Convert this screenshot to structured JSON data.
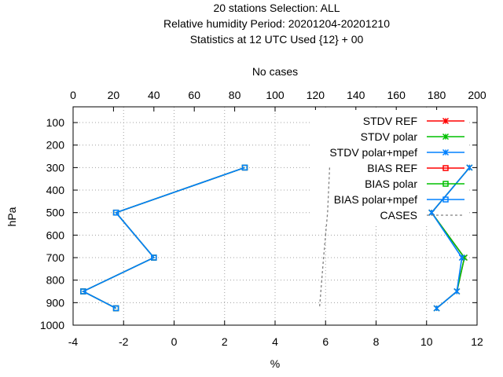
{
  "chart_data": {
    "type": "line",
    "title_lines": [
      "20 stations Selection: ALL",
      "Relative humidity  Period: 20201204-20201210",
      "Statistics at 12 UTC  Used {12} + 00"
    ],
    "xlabel": "%",
    "ylabel": "hPa",
    "x2label": "No cases",
    "xlim": [
      -4,
      12
    ],
    "x2lim": [
      0,
      200
    ],
    "ylim": [
      1000,
      30
    ],
    "xticks": [
      "-4",
      "-2",
      "0",
      "2",
      "4",
      "6",
      "8",
      "10",
      "12"
    ],
    "x2ticks": [
      "0",
      "20",
      "40",
      "60",
      "80",
      "100",
      "120",
      "140",
      "160",
      "180",
      "200"
    ],
    "yticks": [
      "100",
      "200",
      "300",
      "400",
      "500",
      "600",
      "700",
      "800",
      "900",
      "1000"
    ],
    "grid": true,
    "legend_position": "top-right",
    "levels": [
      300,
      500,
      700,
      850,
      925
    ],
    "series": [
      {
        "name": "STDV REF",
        "color": "#ff0000",
        "marker": "x",
        "x": [
          11.7,
          10.2,
          11.5,
          11.2,
          10.4
        ],
        "y": [
          300,
          500,
          700,
          850,
          925
        ]
      },
      {
        "name": "STDV polar",
        "color": "#00c000",
        "marker": "x",
        "x": [
          11.7,
          10.2,
          11.5,
          11.2,
          10.4
        ],
        "y": [
          300,
          500,
          700,
          850,
          925
        ]
      },
      {
        "name": "STDV polar+mpef",
        "color": "#0080ff",
        "marker": "x",
        "x": [
          11.7,
          10.2,
          11.4,
          11.2,
          10.4
        ],
        "y": [
          300,
          500,
          700,
          850,
          925
        ]
      },
      {
        "name": "BIAS REF",
        "color": "#ff0000",
        "marker": "square",
        "x": [
          2.8,
          -2.3,
          -0.8,
          -3.6,
          -2.3
        ],
        "y": [
          300,
          500,
          700,
          850,
          925
        ]
      },
      {
        "name": "BIAS polar",
        "color": "#00c000",
        "marker": "square",
        "x": [
          2.8,
          -2.3,
          -0.8,
          -3.6,
          -2.3
        ],
        "y": [
          300,
          500,
          700,
          850,
          925
        ]
      },
      {
        "name": "BIAS polar+mpef",
        "color": "#0080ff",
        "marker": "square",
        "x": [
          2.8,
          -2.3,
          -0.8,
          -3.6,
          -2.3
        ],
        "y": [
          300,
          500,
          700,
          850,
          925
        ]
      },
      {
        "name": "CASES",
        "color": "#808080",
        "marker": "none",
        "axis": "x2",
        "x": [
          127,
          126,
          124,
          122
        ],
        "y": [
          300,
          500,
          700,
          925
        ]
      }
    ]
  }
}
